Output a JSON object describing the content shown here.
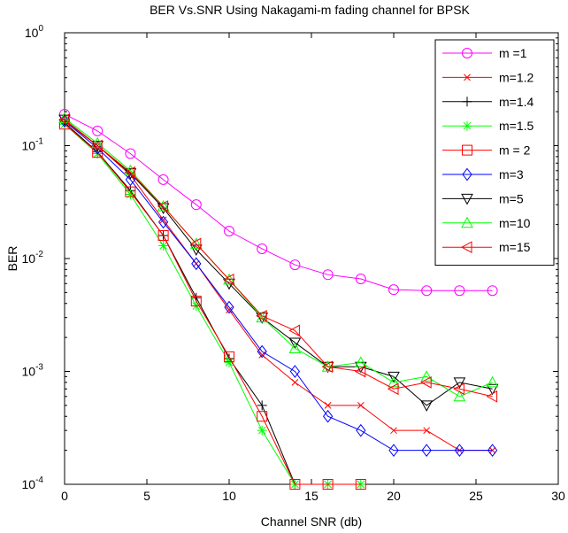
{
  "chart_data": {
    "type": "line",
    "title": "BER Vs.SNR Using Nakagami-m fading channel for BPSK",
    "xlabel": "Channel SNR (db)",
    "ylabel": "BER",
    "xlim": [
      0,
      30
    ],
    "ylim": [
      0.0001,
      1
    ],
    "yscale": "log",
    "x_ticks": [
      "0",
      "5",
      "10",
      "15",
      "20",
      "25",
      "30"
    ],
    "y_ticks": [
      {
        "value": 0.0001,
        "base": "10",
        "exp": "-4"
      },
      {
        "value": 0.001,
        "base": "10",
        "exp": "-3"
      },
      {
        "value": 0.01,
        "base": "10",
        "exp": "-2"
      },
      {
        "value": 0.1,
        "base": "10",
        "exp": "-1"
      },
      {
        "value": 1,
        "base": "10",
        "exp": "0"
      }
    ],
    "grid": false,
    "legend_position": "top-right",
    "x": [
      0,
      2,
      4,
      6,
      8,
      10,
      12,
      14,
      16,
      18,
      20,
      22,
      24,
      26
    ],
    "series": [
      {
        "name": "m =1",
        "color": "#ff00ff",
        "marker": "circle",
        "values": [
          0.19,
          0.135,
          0.085,
          0.05,
          0.03,
          0.0175,
          0.0122,
          0.0088,
          0.0072,
          0.0066,
          0.0053,
          0.0052,
          0.0052,
          0.0052
        ]
      },
      {
        "name": "m=1.2",
        "color": "#ff0000",
        "marker": "x",
        "values": [
          0.165,
          0.1,
          0.055,
          0.022,
          0.009,
          0.0035,
          0.0014,
          0.0008,
          0.0005,
          0.0005,
          0.0003,
          0.0003,
          0.0002,
          0.0002
        ]
      },
      {
        "name": "m=1.4",
        "color": "#000000",
        "marker": "plus",
        "values": [
          0.16,
          0.088,
          0.04,
          0.016,
          0.0045,
          0.0013,
          0.0005,
          0.0001,
          null,
          null,
          null,
          null,
          null,
          null
        ]
      },
      {
        "name": "m=1.5",
        "color": "#00ff00",
        "marker": "star",
        "values": [
          0.155,
          0.085,
          0.037,
          0.013,
          0.0038,
          0.0012,
          0.0003,
          0.0001,
          0.0001,
          0.0001,
          null,
          null,
          null,
          null
        ]
      },
      {
        "name": "m = 2",
        "color": "#ff0000",
        "marker": "square",
        "values": [
          0.155,
          0.087,
          0.039,
          0.016,
          0.0042,
          0.00135,
          0.0004,
          0.0001,
          0.0001,
          0.0001,
          null,
          null,
          null,
          null
        ]
      },
      {
        "name": "m=3",
        "color": "#0000ff",
        "marker": "diamond",
        "values": [
          0.165,
          0.095,
          0.05,
          0.021,
          0.009,
          0.0037,
          0.0015,
          0.001,
          0.0004,
          0.0003,
          0.0002,
          0.0002,
          0.0002,
          0.0002
        ]
      },
      {
        "name": "m=5",
        "color": "#000000",
        "marker": "triangle-down",
        "values": [
          0.17,
          0.1,
          0.057,
          0.028,
          0.012,
          0.006,
          0.003,
          0.0018,
          0.0011,
          0.0011,
          0.0009,
          0.0005,
          0.0008,
          0.0007
        ]
      },
      {
        "name": "m=10",
        "color": "#00ff00",
        "marker": "triangle-up",
        "values": [
          0.175,
          0.105,
          0.06,
          0.029,
          0.0135,
          0.0065,
          0.003,
          0.0016,
          0.0011,
          0.0012,
          0.0008,
          0.0009,
          0.0006,
          0.0008
        ]
      },
      {
        "name": "m=15",
        "color": "#ff0000",
        "marker": "triangle-left",
        "values": [
          0.17,
          0.1,
          0.058,
          0.029,
          0.0135,
          0.0065,
          0.0031,
          0.0023,
          0.0011,
          0.001,
          0.0007,
          0.0008,
          0.0007,
          0.0006
        ]
      }
    ]
  }
}
